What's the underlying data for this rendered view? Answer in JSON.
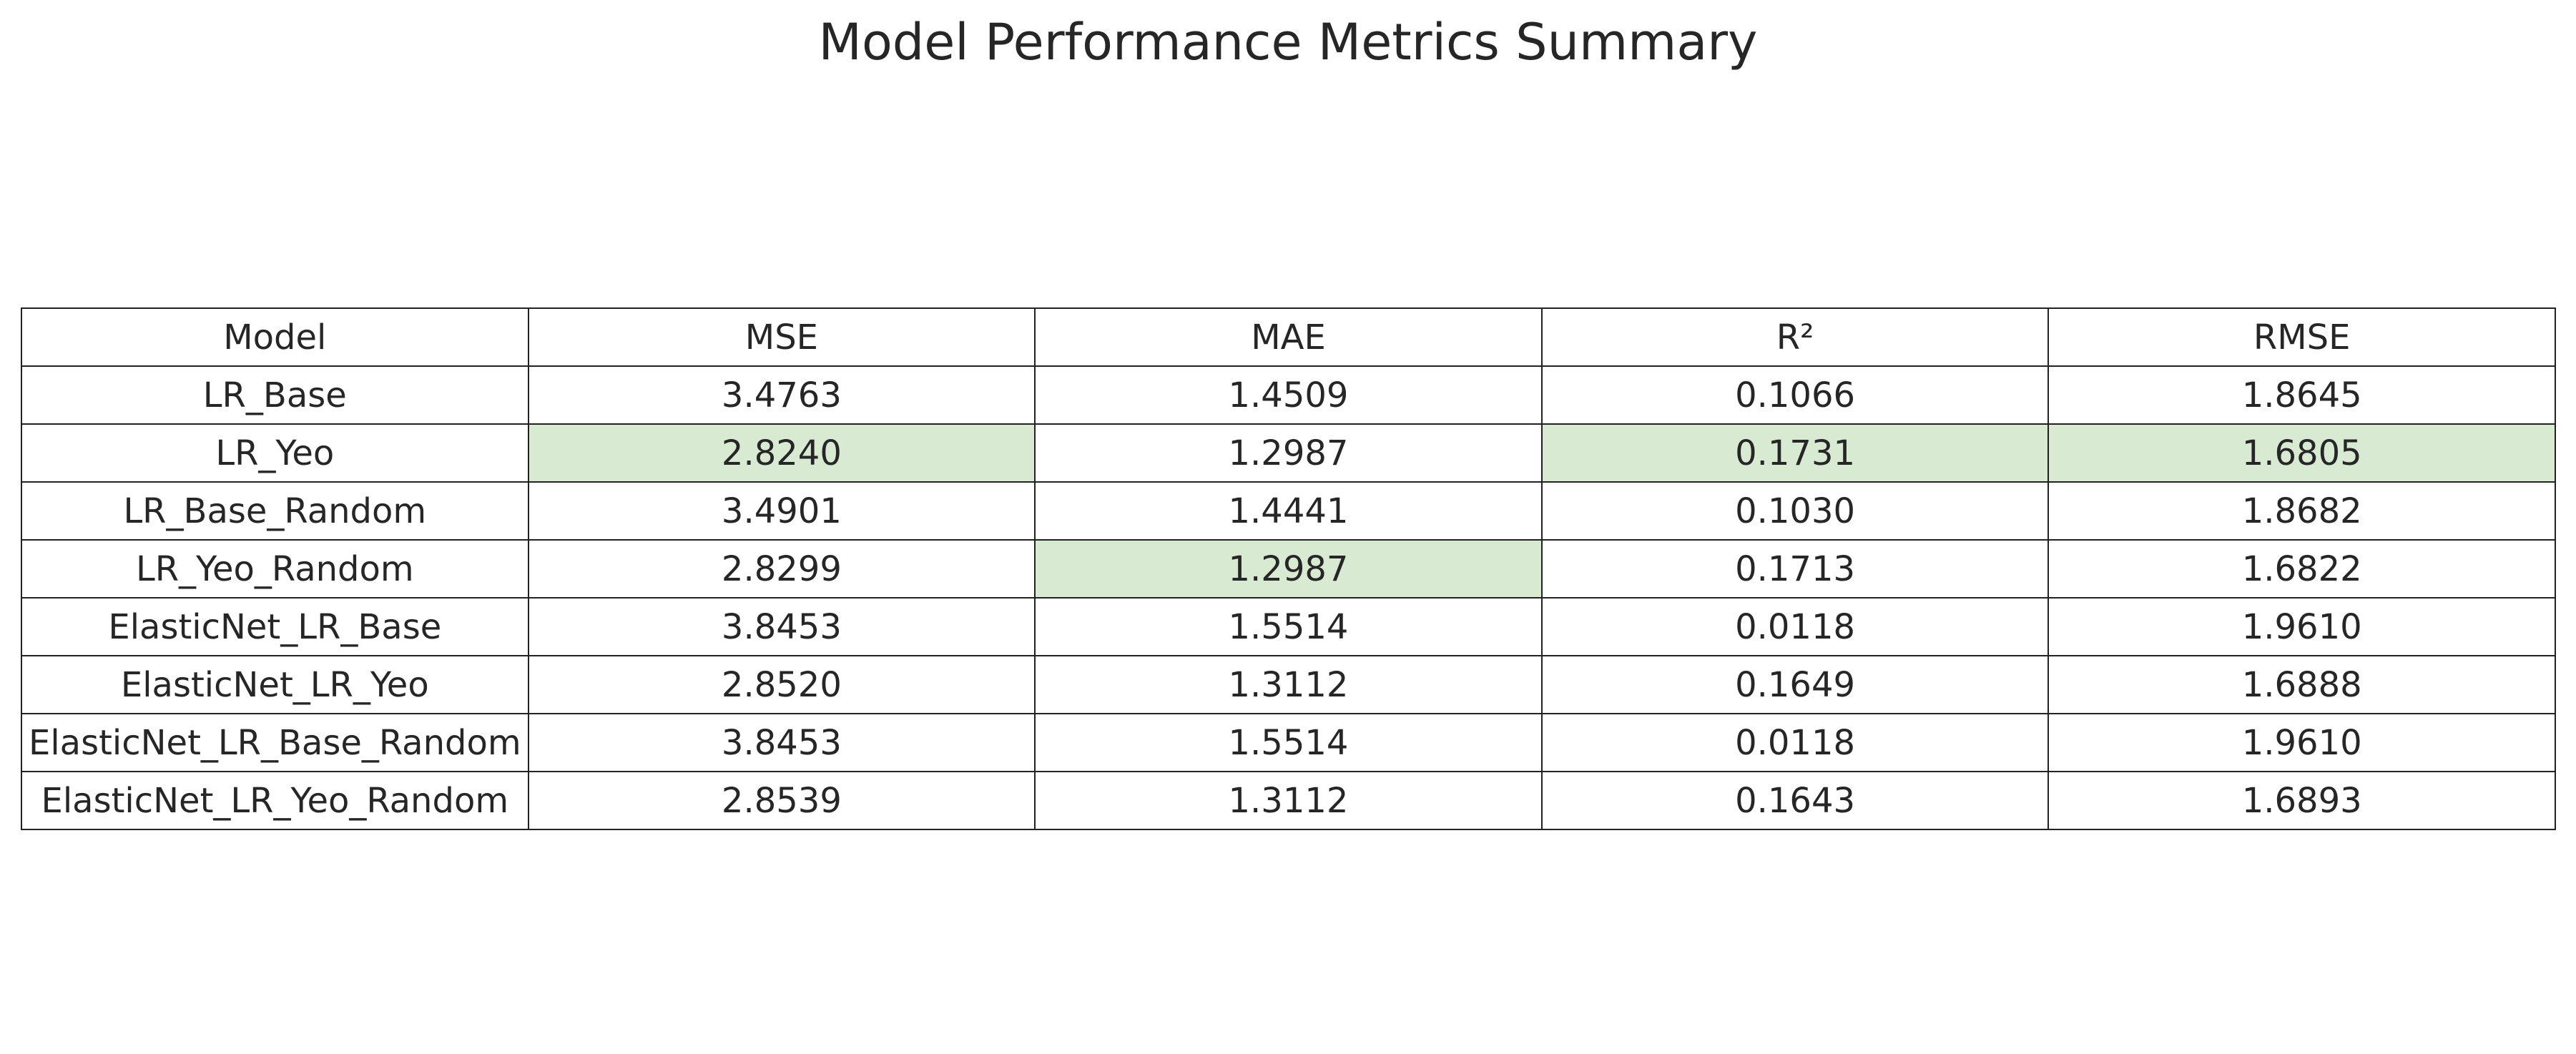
{
  "chart_data": {
    "type": "table",
    "title": "Model Performance Metrics Summary",
    "columns": [
      "Model",
      "MSE",
      "MAE",
      "R²",
      "RMSE"
    ],
    "rows": [
      [
        "LR_Base",
        "3.4763",
        "1.4509",
        "0.1066",
        "1.8645"
      ],
      [
        "LR_Yeo",
        "2.8240",
        "1.2987",
        "0.1731",
        "1.6805"
      ],
      [
        "LR_Base_Random",
        "3.4901",
        "1.4441",
        "0.1030",
        "1.8682"
      ],
      [
        "LR_Yeo_Random",
        "2.8299",
        "1.2987",
        "0.1713",
        "1.6822"
      ],
      [
        "ElasticNet_LR_Base",
        "3.8453",
        "1.5514",
        "0.0118",
        "1.9610"
      ],
      [
        "ElasticNet_LR_Yeo",
        "2.8520",
        "1.3112",
        "0.1649",
        "1.6888"
      ],
      [
        "ElasticNet_LR_Base_Random",
        "3.8453",
        "1.5514",
        "0.0118",
        "1.9610"
      ],
      [
        "ElasticNet_LR_Yeo_Random",
        "2.8539",
        "1.3112",
        "0.1643",
        "1.6893"
      ]
    ],
    "highlighted_cells": [
      {
        "row": 1,
        "col": 1
      },
      {
        "row": 3,
        "col": 2
      },
      {
        "row": 1,
        "col": 3
      },
      {
        "row": 1,
        "col": 4
      }
    ],
    "highlight_color": "#d9ead3",
    "border_color": "#222222",
    "text_color": "#262626"
  }
}
